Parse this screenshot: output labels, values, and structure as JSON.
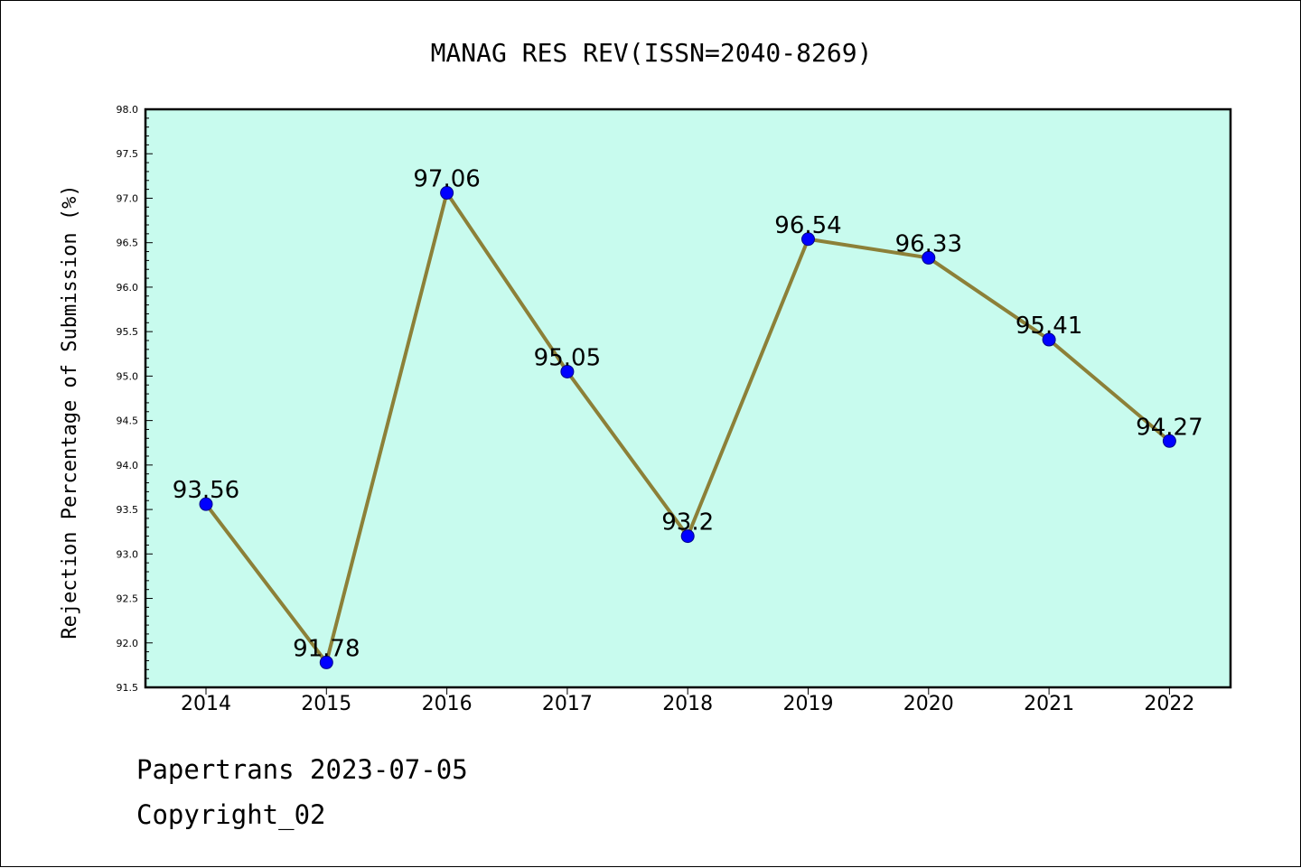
{
  "footer": {
    "line1": "Papertrans 2023-07-05",
    "line2": "Copyright_02"
  },
  "chart_data": {
    "type": "line",
    "title": "MANAG RES REV(ISSN=2040-8269)",
    "xlabel": "",
    "ylabel": "Rejection Percentage of Submission (%)",
    "categories": [
      "2014",
      "2015",
      "2016",
      "2017",
      "2018",
      "2019",
      "2020",
      "2021",
      "2022"
    ],
    "values": [
      93.56,
      91.78,
      97.06,
      95.05,
      93.2,
      96.54,
      96.33,
      95.41,
      94.27
    ],
    "data_labels": [
      "93.56",
      "91.78",
      "97.06",
      "95.05",
      "93.2",
      "96.54",
      "96.33",
      "95.41",
      "94.27"
    ],
    "ylim": [
      91.5,
      98.0
    ],
    "yticks": [
      "91.5",
      "92.0",
      "92.5",
      "93.0",
      "93.5",
      "94.0",
      "94.5",
      "95.0",
      "95.5",
      "96.0",
      "96.5",
      "97.0",
      "97.5",
      "98.0"
    ],
    "grid": false,
    "legend": "none",
    "colors": {
      "plot_background": "#c8fbee",
      "line": "#8c8038",
      "marker": "#0000ff"
    }
  }
}
